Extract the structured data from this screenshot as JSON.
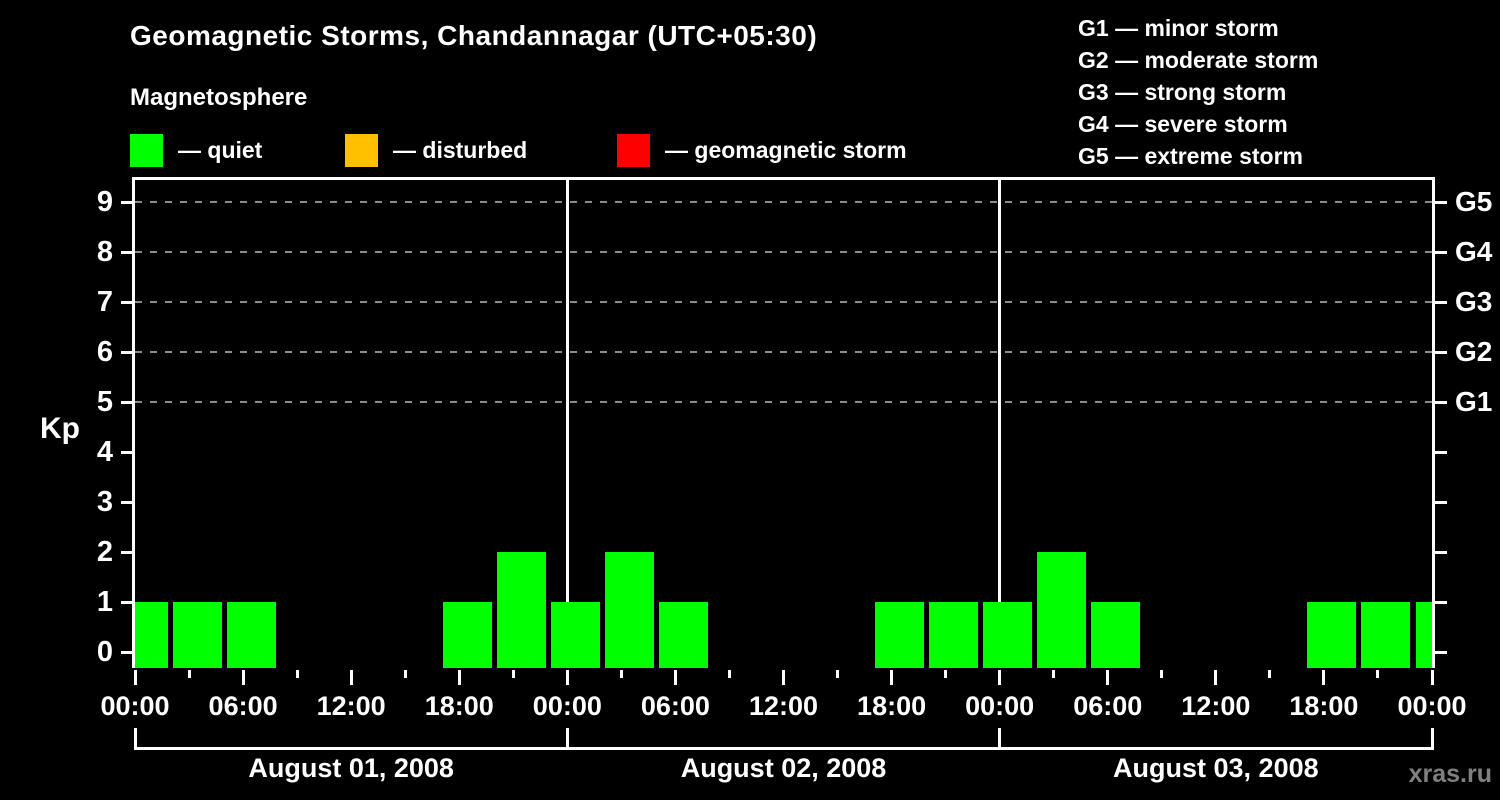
{
  "title": "Geomagnetic Storms, Chandannagar (UTC+05:30)",
  "subtitle": "Magnetosphere",
  "legend": {
    "quiet": {
      "label": "— quiet",
      "color": "#00ff00"
    },
    "disturbed": {
      "label": "— disturbed",
      "color": "#ffc000"
    },
    "storm": {
      "label": "— geomagnetic storm",
      "color": "#ff0000"
    }
  },
  "storm_scale": {
    "lines": [
      "G1 — minor storm",
      "G2 — moderate storm",
      "G3 — strong storm",
      "G4 — severe storm",
      "G5 — extreme storm"
    ]
  },
  "watermark": "xras.ru",
  "chart_data": {
    "type": "bar",
    "title": "Geomagnetic Storms, Chandannagar (UTC+05:30)",
    "ylabel": "Kp",
    "ylim": [
      0,
      9.5
    ],
    "yticks": [
      "0",
      "1",
      "2",
      "3",
      "4",
      "5",
      "6",
      "7",
      "8",
      "9"
    ],
    "grid_dashed_at_kp": [
      5,
      6,
      7,
      8,
      9
    ],
    "right_axis_labels": [
      {
        "kp": 5,
        "label": "G1"
      },
      {
        "kp": 6,
        "label": "G2"
      },
      {
        "kp": 7,
        "label": "G3"
      },
      {
        "kp": 8,
        "label": "G4"
      },
      {
        "kp": 9,
        "label": "G5"
      }
    ],
    "bar_color": "#00ff00",
    "interval_hours": 3,
    "x_major_tick_labels": [
      "00:00",
      "06:00",
      "12:00",
      "18:00",
      "00:00",
      "06:00",
      "12:00",
      "18:00",
      "00:00",
      "06:00",
      "12:00",
      "18:00",
      "00:00"
    ],
    "days": [
      {
        "label": "August 01, 2008",
        "kp": [
          1,
          1,
          1,
          0,
          0,
          0,
          1,
          2
        ]
      },
      {
        "label": "August 02, 2008",
        "kp": [
          1,
          2,
          1,
          0,
          0,
          0,
          1,
          1
        ]
      },
      {
        "label": "August 03, 2008",
        "kp": [
          1,
          2,
          1,
          0,
          0,
          0,
          1,
          1
        ]
      }
    ],
    "trailing_partial_bar_kp": 1,
    "legend_position": "top-left",
    "grid": "horizontal dashed lines at storm levels only"
  }
}
